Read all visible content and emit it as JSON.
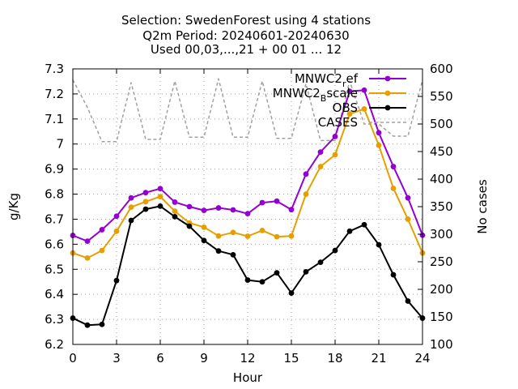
{
  "chart_data": {
    "type": "line",
    "title_lines": [
      "Selection: SwedenForest using     4 stations",
      "Q2m   Period: 20240601-20240630",
      "Used 00,03,...,21 + 00 01 ... 12"
    ],
    "xlabel": "Hour",
    "ylabel": "g/Kg",
    "y2label": "No cases",
    "xlim": [
      0,
      24
    ],
    "ylim": [
      6.2,
      7.3
    ],
    "y2lim": [
      100,
      600
    ],
    "xticks": [
      0,
      3,
      6,
      9,
      12,
      15,
      18,
      21,
      24
    ],
    "yticks": [
      6.2,
      6.3,
      6.4,
      6.5,
      6.6,
      6.7,
      6.8,
      6.9,
      7,
      7.1,
      7.2,
      7.3
    ],
    "y2ticks": [
      100,
      150,
      200,
      250,
      300,
      350,
      400,
      450,
      500,
      550,
      600
    ],
    "grid": true,
    "legend_position": "top-right",
    "x": [
      0,
      1,
      2,
      3,
      4,
      5,
      6,
      7,
      8,
      9,
      10,
      11,
      12,
      13,
      14,
      15,
      16,
      17,
      18,
      19,
      20,
      21,
      22,
      23,
      24
    ],
    "series": [
      {
        "name_main": "MNWC2",
        "name_sub": "r",
        "name_rest": "ef",
        "color": "#9400d3",
        "marker": "circle",
        "axis": "y1",
        "values": [
          6.635,
          6.612,
          6.658,
          6.712,
          6.785,
          6.806,
          6.822,
          6.768,
          6.75,
          6.735,
          6.745,
          6.737,
          6.722,
          6.766,
          6.772,
          6.738,
          6.88,
          6.968,
          7.03,
          7.21,
          7.215,
          7.045,
          6.91,
          6.785,
          6.636
        ]
      },
      {
        "name_main": "MNWC2",
        "name_sub": "B",
        "name_rest": "scale",
        "color": "#e69f00",
        "marker": "circle",
        "axis": "y1",
        "values": [
          6.565,
          6.545,
          6.575,
          6.652,
          6.748,
          6.77,
          6.79,
          6.732,
          6.685,
          6.668,
          6.633,
          6.647,
          6.632,
          6.655,
          6.63,
          6.633,
          6.8,
          6.91,
          6.957,
          7.12,
          7.14,
          6.995,
          6.823,
          6.7,
          6.565
        ]
      },
      {
        "name_main": "OBS",
        "name_sub": "",
        "name_rest": "",
        "color": "#000000",
        "marker": "circle",
        "axis": "y1",
        "values": [
          6.305,
          6.277,
          6.28,
          6.455,
          6.695,
          6.74,
          6.752,
          6.71,
          6.672,
          6.615,
          6.573,
          6.558,
          6.457,
          6.45,
          6.486,
          6.405,
          6.49,
          6.528,
          6.575,
          6.652,
          6.678,
          6.598,
          6.478,
          6.373,
          6.305
        ]
      },
      {
        "name_main": "CASES",
        "name_sub": "",
        "name_rest": "",
        "color": "#a0a0a0",
        "marker": "none",
        "dashed": true,
        "axis": "y2",
        "values": [
          580,
          530,
          468,
          468,
          575,
          472,
          472,
          578,
          476,
          476,
          582,
          476,
          476,
          578,
          474,
          474,
          573,
          470,
          470,
          578,
          500,
          500,
          478,
          478,
          580
        ]
      }
    ]
  }
}
